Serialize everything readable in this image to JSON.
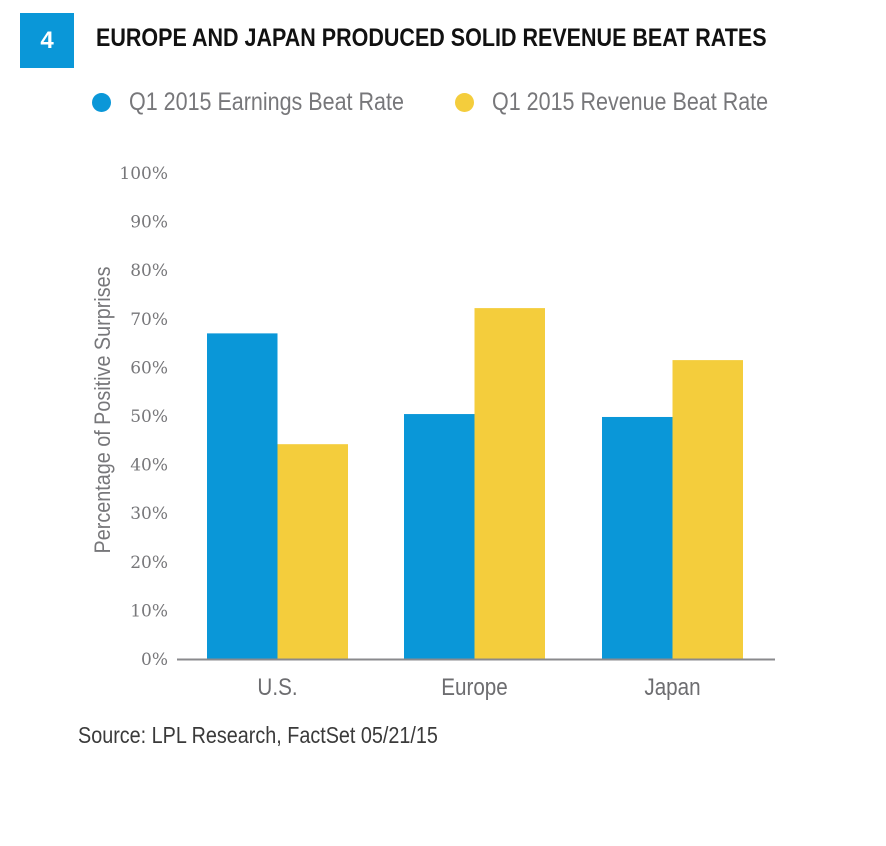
{
  "figure_number": "4",
  "title": "EUROPE AND JAPAN PRODUCED SOLID REVENUE BEAT RATES",
  "source": "Source: LPL Research, FactSet   05/21/15",
  "colors": {
    "badge": "#0a97d8",
    "earnings": "#0a97d8",
    "revenue": "#f4cd3c",
    "axis": "#8a8a8d"
  },
  "chart_data": {
    "type": "bar",
    "title": "EUROPE AND JAPAN PRODUCED SOLID REVENUE BEAT RATES",
    "xlabel": "",
    "ylabel": "Percentage of Positive Surprises",
    "categories": [
      "U.S.",
      "Europe",
      "Japan"
    ],
    "series": [
      {
        "name": "Q1 2015 Earnings Beat Rate",
        "color": "#0a97d8",
        "values": [
          67,
          50.4,
          49.8
        ]
      },
      {
        "name": "Q1 2015 Revenue Beat Rate",
        "color": "#f4cd3c",
        "values": [
          44.2,
          72.2,
          61.5
        ]
      }
    ],
    "ylim": [
      0,
      100
    ],
    "yticks": [
      0,
      10,
      20,
      30,
      40,
      50,
      60,
      70,
      80,
      90,
      100
    ],
    "ytick_labels": [
      "0%",
      "10%",
      "20%",
      "30%",
      "40%",
      "50%",
      "60%",
      "70%",
      "80%",
      "90%",
      "100%"
    ],
    "grid": false,
    "legend_position": "top-left"
  }
}
